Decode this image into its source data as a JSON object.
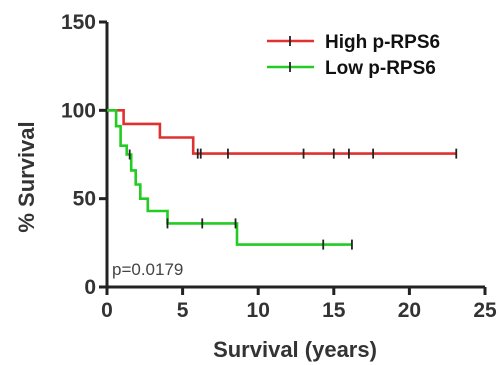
{
  "chart_data": {
    "type": "line",
    "title": "",
    "xlabel": "Survival (years)",
    "ylabel": "% Survival",
    "xlim": [
      0,
      25
    ],
    "ylim": [
      0,
      150
    ],
    "xticks": [
      0,
      5,
      10,
      15,
      20,
      25
    ],
    "yticks": [
      0,
      50,
      100,
      150
    ],
    "grid": false,
    "legend_position": "top-right",
    "annotation": "p=0.0179",
    "series": [
      {
        "name": "High p-RPS6",
        "color": "#e03030",
        "steps": [
          [
            0,
            100
          ],
          [
            1.1,
            100
          ],
          [
            1.1,
            92.3
          ],
          [
            3.5,
            92.3
          ],
          [
            3.5,
            84.6
          ],
          [
            5.7,
            84.6
          ],
          [
            5.7,
            75.5
          ],
          [
            23.1,
            75.5
          ]
        ],
        "censors": [
          [
            6,
            75.5
          ],
          [
            6.2,
            75.5
          ],
          [
            8,
            75.5
          ],
          [
            13,
            75.5
          ],
          [
            15,
            75.5
          ],
          [
            16,
            75.5
          ],
          [
            17.6,
            75.5
          ],
          [
            23.1,
            75.5
          ]
        ]
      },
      {
        "name": "Low p-RPS6",
        "color": "#22cc22",
        "steps": [
          [
            0,
            100
          ],
          [
            0.6,
            100
          ],
          [
            0.6,
            91
          ],
          [
            0.9,
            91
          ],
          [
            0.9,
            80
          ],
          [
            1.3,
            80
          ],
          [
            1.3,
            75
          ],
          [
            1.6,
            75
          ],
          [
            1.6,
            66
          ],
          [
            1.9,
            66
          ],
          [
            1.9,
            58
          ],
          [
            2.2,
            58
          ],
          [
            2.2,
            50
          ],
          [
            2.7,
            50
          ],
          [
            2.7,
            43
          ],
          [
            4,
            43
          ],
          [
            4,
            36
          ],
          [
            8.6,
            36
          ],
          [
            8.6,
            24
          ],
          [
            16.2,
            24
          ]
        ],
        "censors": [
          [
            1.5,
            75
          ],
          [
            4,
            36
          ],
          [
            6.3,
            36
          ],
          [
            8.5,
            36
          ],
          [
            14.3,
            24
          ],
          [
            16.2,
            24
          ]
        ]
      }
    ]
  }
}
